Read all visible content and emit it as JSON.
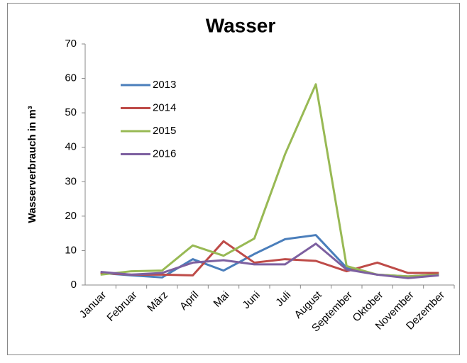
{
  "chart_data": {
    "type": "line",
    "title": "Wasser",
    "y_label": "Wasserverbrauch in m³",
    "categories": [
      "Januar",
      "Februar",
      "März",
      "April",
      "Mai",
      "Juni",
      "Juli",
      "August",
      "September",
      "Oktober",
      "November",
      "Dezember"
    ],
    "series": [
      {
        "name": "2013",
        "color": "#4a7ebb",
        "values": [
          3.5,
          2.8,
          2.2,
          7.5,
          4.2,
          9,
          13.3,
          14.5,
          5,
          3,
          2.5,
          3
        ]
      },
      {
        "name": "2014",
        "color": "#be4b48",
        "values": [
          3.5,
          3,
          3,
          2.8,
          12.7,
          6.5,
          7.5,
          7,
          4,
          6.5,
          3.5,
          3.5
        ]
      },
      {
        "name": "2015",
        "color": "#98b954",
        "values": [
          3,
          4,
          4.2,
          11.5,
          8.5,
          13.5,
          38,
          58.3,
          5.5,
          3,
          2.5,
          3
        ]
      },
      {
        "name": "2016",
        "color": "#7d60a0",
        "values": [
          3.8,
          3,
          3.5,
          6.5,
          7.2,
          6,
          6,
          12,
          4.5,
          3,
          2,
          2.8
        ]
      }
    ],
    "ylim": [
      0,
      70
    ],
    "yticks": [
      0,
      10,
      20,
      30,
      40,
      50,
      60,
      70
    ],
    "grid": false,
    "legend": "upper-left"
  }
}
